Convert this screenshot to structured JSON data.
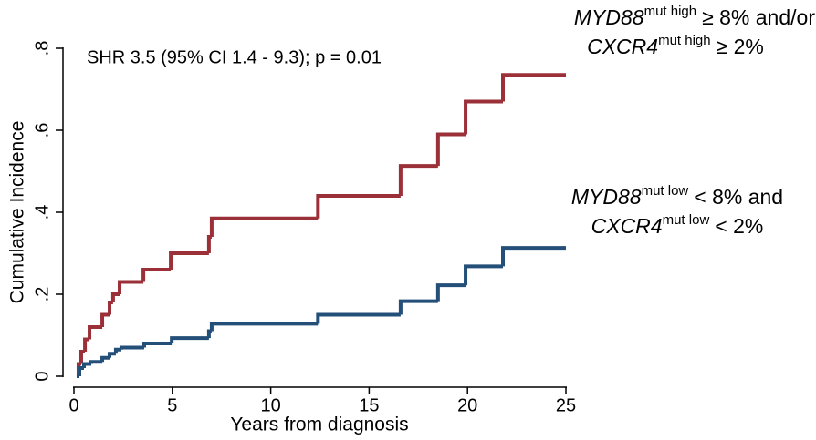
{
  "chart_data": {
    "type": "step",
    "ylabel": "Cumulative Incidence",
    "xlabel": "Years from diagnosis",
    "annotation": "SHR 3.5 (95% CI 1.4 - 9.3); p = 0.01",
    "xlim": [
      0,
      25
    ],
    "xticks": [
      0,
      5,
      10,
      15,
      20,
      25
    ],
    "ylim": [
      0,
      0.8
    ],
    "yticks": [
      0,
      {
        "value": 0.2,
        "label": ".2"
      },
      {
        "value": 0.4,
        "label": ".4"
      },
      {
        "value": 0.6,
        "label": ".6"
      },
      {
        "value": 0.8,
        "label": ".8"
      }
    ],
    "series": [
      {
        "color": "#9b3039",
        "label": [
          [
            "MYD88",
            "mut high",
            "≥ 8% and/or"
          ],
          [
            "CXCR4",
            "mut high",
            "≥ 2%"
          ]
        ],
        "x": [
          0.14,
          0.23,
          0.37,
          0.56,
          0.79,
          1.44,
          1.81,
          1.99,
          2.32,
          3.53,
          4.92,
          6.86,
          7.0,
          12.4,
          16.6,
          18.5,
          19.9,
          21.8,
          25
        ],
        "values": [
          0,
          0.03,
          0.06,
          0.09,
          0.12,
          0.15,
          0.18,
          0.2,
          0.23,
          0.26,
          0.3,
          0.34,
          0.385,
          0.44,
          0.513,
          0.59,
          0.67,
          0.735,
          0.735
        ]
      },
      {
        "color": "#234f78",
        "label": [
          [
            "MYD88",
            "mut low",
            "< 8% and"
          ],
          [
            "CXCR4",
            "mut low",
            "< 2%"
          ]
        ],
        "x": [
          0.14,
          0.28,
          0.51,
          0.88,
          1.44,
          1.81,
          2.13,
          2.41,
          3.57,
          4.97,
          6.86,
          7.0,
          12.4,
          16.6,
          18.5,
          19.9,
          21.8,
          25
        ],
        "values": [
          0,
          0.02,
          0.03,
          0.035,
          0.045,
          0.055,
          0.065,
          0.07,
          0.08,
          0.093,
          0.11,
          0.128,
          0.15,
          0.183,
          0.222,
          0.268,
          0.313,
          0.313
        ]
      }
    ]
  }
}
